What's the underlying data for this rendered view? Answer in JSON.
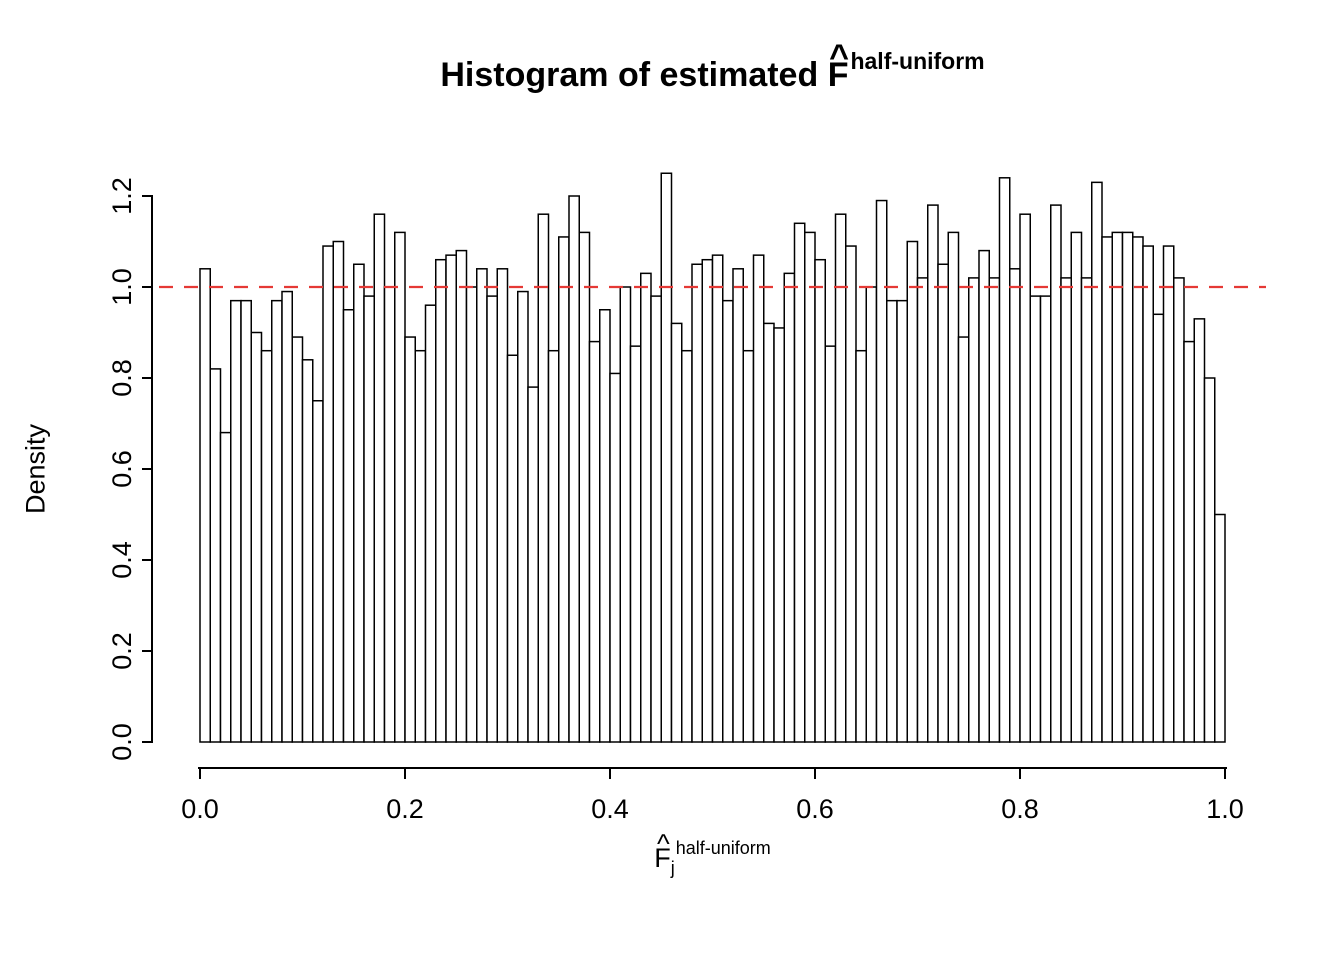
{
  "title": {
    "prefix": "Histogram of estimated ",
    "symbol": "F",
    "hat": "^",
    "superscript": "half-uniform"
  },
  "y_axis": {
    "label": "Density",
    "ticks": [
      "0.0",
      "0.2",
      "0.4",
      "0.6",
      "0.8",
      "1.0",
      "1.2"
    ]
  },
  "x_axis": {
    "symbol": "F",
    "hat": "^",
    "subscript": "j",
    "superscript": "half-uniform",
    "ticks": [
      "0.0",
      "0.2",
      "0.4",
      "0.6",
      "0.8",
      "1.0"
    ]
  },
  "colors": {
    "bar_fill": "#ffffff",
    "bar_stroke": "#000000",
    "axis": "#000000",
    "reference_line": "#e53935",
    "background": "#ffffff"
  },
  "chart_data": {
    "type": "bar",
    "subtype": "histogram",
    "title": "Histogram of estimated F^half-uniform",
    "xlabel": "F_j^half-uniform",
    "ylabel": "Density",
    "xlim": [
      0,
      1
    ],
    "ylim": [
      0,
      1.25
    ],
    "grid": false,
    "legend": false,
    "bin_start": 0,
    "bin_width": 0.01,
    "xticks": [
      0,
      0.2,
      0.4,
      0.6,
      0.8,
      1.0
    ],
    "yticks": [
      0,
      0.2,
      0.4,
      0.6,
      0.8,
      1.0,
      1.2
    ],
    "reference_line": {
      "y": 1.0,
      "style": "dashed",
      "color": "#e53935"
    },
    "values": [
      1.04,
      0.82,
      0.68,
      0.97,
      0.97,
      0.9,
      0.86,
      0.97,
      0.99,
      0.89,
      0.84,
      0.75,
      1.09,
      1.1,
      0.95,
      1.05,
      0.98,
      1.16,
      1.0,
      1.12,
      0.89,
      0.86,
      0.96,
      1.06,
      1.07,
      1.08,
      1.0,
      1.04,
      0.98,
      1.04,
      0.85,
      0.99,
      0.78,
      1.16,
      0.86,
      1.11,
      1.2,
      1.12,
      0.88,
      0.95,
      0.81,
      1.0,
      0.87,
      1.03,
      0.98,
      1.25,
      0.92,
      0.86,
      1.05,
      1.06,
      1.07,
      0.97,
      1.04,
      0.86,
      1.07,
      0.92,
      0.91,
      1.03,
      1.14,
      1.12,
      1.06,
      0.87,
      1.16,
      1.09,
      0.86,
      1.0,
      1.19,
      0.97,
      0.97,
      1.1,
      1.02,
      1.18,
      1.05,
      1.12,
      0.89,
      1.02,
      1.08,
      1.02,
      1.24,
      1.04,
      1.16,
      0.98,
      0.98,
      1.18,
      1.02,
      1.12,
      1.02,
      1.23,
      1.11,
      1.12,
      1.12,
      1.11,
      1.09,
      0.94,
      1.09,
      1.02,
      0.88,
      0.93,
      0.8,
      0.5
    ]
  }
}
